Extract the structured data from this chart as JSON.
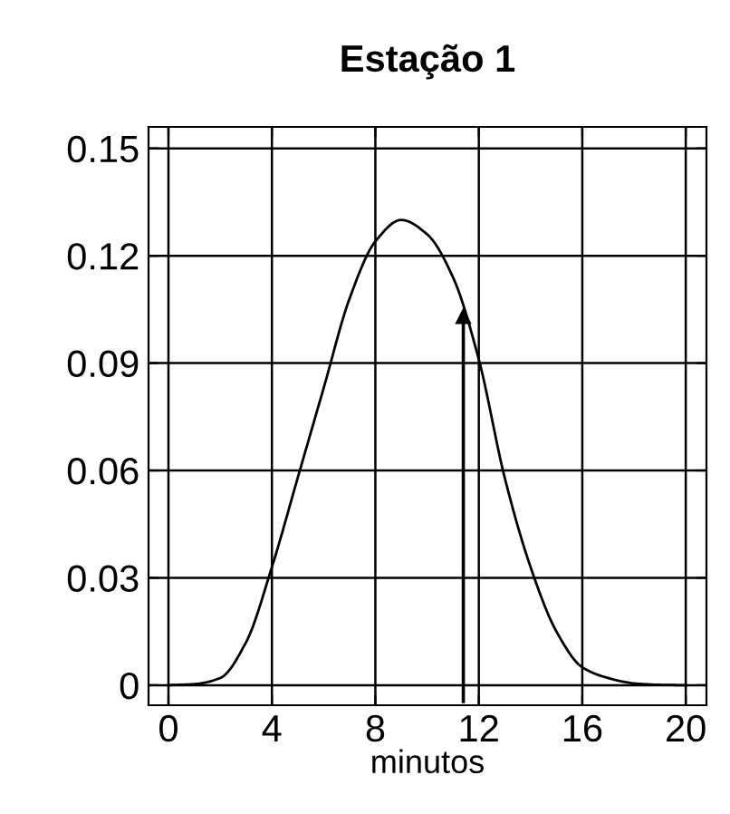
{
  "chart_data": {
    "type": "line",
    "title": "Estação 1",
    "xlabel": "minutos",
    "xlim": [
      -0.77,
      20.8
    ],
    "ylim": [
      -0.0056,
      0.156
    ],
    "xticks": [
      0,
      4,
      8,
      12,
      16,
      20
    ],
    "yticks": [
      0,
      0.03,
      0.06,
      0.09,
      0.12,
      0.15
    ],
    "grid": true,
    "line_style": "solid",
    "series": [
      {
        "color": "#000000",
        "x": [
          0,
          1,
          2,
          3,
          4,
          5,
          6,
          7,
          8,
          9,
          10,
          11,
          12,
          13,
          14,
          15,
          16,
          17,
          18,
          19,
          20
        ],
        "values": [
          0,
          0.0003,
          0.002,
          0.012,
          0.033,
          0.058,
          0.083,
          0.108,
          0.124,
          0.13,
          0.126,
          0.114,
          0.091,
          0.058,
          0.033,
          0.015,
          0.005,
          0.002,
          0.0005,
          0.0001,
          0
        ]
      },
      {
        "marker": "triangle",
        "color": "#000000",
        "x": [
          11.4,
          11.4
        ],
        "values": [
          -0.0046,
          0.103
        ]
      }
    ]
  }
}
